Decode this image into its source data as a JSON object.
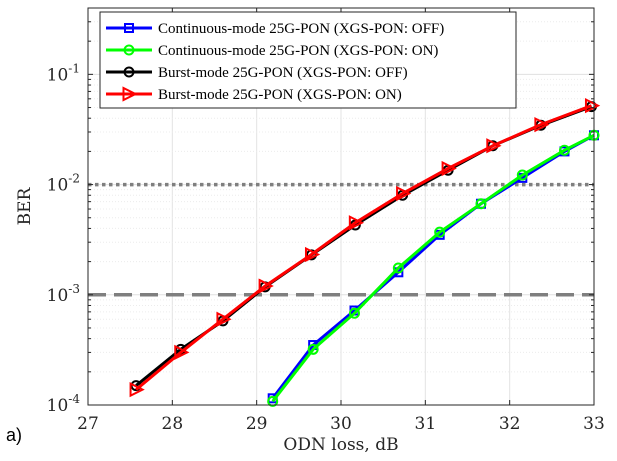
{
  "panel_label": "a)",
  "chart_data": {
    "type": "line",
    "xlabel": "ODN loss, dB",
    "ylabel": "BER",
    "xlim": [
      27,
      33
    ],
    "ylim": [
      0.0001,
      0.4
    ],
    "yscale": "log",
    "grid": true,
    "legend_position": "top-left",
    "x_ticks": [
      27,
      28,
      29,
      30,
      31,
      32,
      33
    ],
    "y_ticks": [
      {
        "value": 0.0001,
        "base": "10",
        "exp": "-4"
      },
      {
        "value": 0.001,
        "base": "10",
        "exp": "-3"
      },
      {
        "value": 0.01,
        "base": "10",
        "exp": "-2"
      },
      {
        "value": 0.1,
        "base": "10",
        "exp": "-1"
      }
    ],
    "threshold_lines": [
      {
        "y": 0.01,
        "style": "dotted",
        "color": "#7f7f7f"
      },
      {
        "y": 0.001,
        "style": "dashed",
        "color": "#7f7f7f"
      }
    ],
    "series": [
      {
        "name": "Continuous-mode 25G-PON (XGS-PON: OFF)",
        "color": "#0000ff",
        "marker": "square",
        "x": [
          29.19,
          29.67,
          30.16,
          30.68,
          31.17,
          31.66,
          32.15,
          32.65,
          33.0
        ],
        "y": [
          0.000115,
          0.00035,
          0.00072,
          0.0016,
          0.0035,
          0.0067,
          0.0115,
          0.02,
          0.028
        ]
      },
      {
        "name": "Continuous-mode 25G-PON (XGS-PON: ON)",
        "color": "#00ff00",
        "marker": "circle",
        "x": [
          29.19,
          29.67,
          30.16,
          30.68,
          31.17,
          31.66,
          32.15,
          32.65,
          33.0
        ],
        "y": [
          0.000108,
          0.00032,
          0.00068,
          0.00175,
          0.0037,
          0.0067,
          0.0122,
          0.0205,
          0.028
        ]
      },
      {
        "name": "Burst-mode 25G-PON (XGS-PON: OFF)",
        "color": "#000000",
        "marker": "circle",
        "x": [
          27.57,
          28.1,
          28.6,
          29.1,
          29.65,
          30.17,
          30.73,
          31.27,
          31.8,
          32.37,
          32.97
        ],
        "y": [
          0.00015,
          0.00032,
          0.00058,
          0.00118,
          0.0023,
          0.0043,
          0.008,
          0.0135,
          0.0225,
          0.0345,
          0.051
        ]
      },
      {
        "name": "Burst-mode 25G-PON (XGS-PON: ON)",
        "color": "#ff0000",
        "marker": "triangle-right",
        "x": [
          27.57,
          28.1,
          28.6,
          29.1,
          29.65,
          30.17,
          30.73,
          31.27,
          31.8,
          32.37,
          32.97
        ],
        "y": [
          0.000138,
          0.0003,
          0.0006,
          0.0012,
          0.00232,
          0.0045,
          0.0083,
          0.014,
          0.0225,
          0.035,
          0.052
        ]
      }
    ]
  }
}
